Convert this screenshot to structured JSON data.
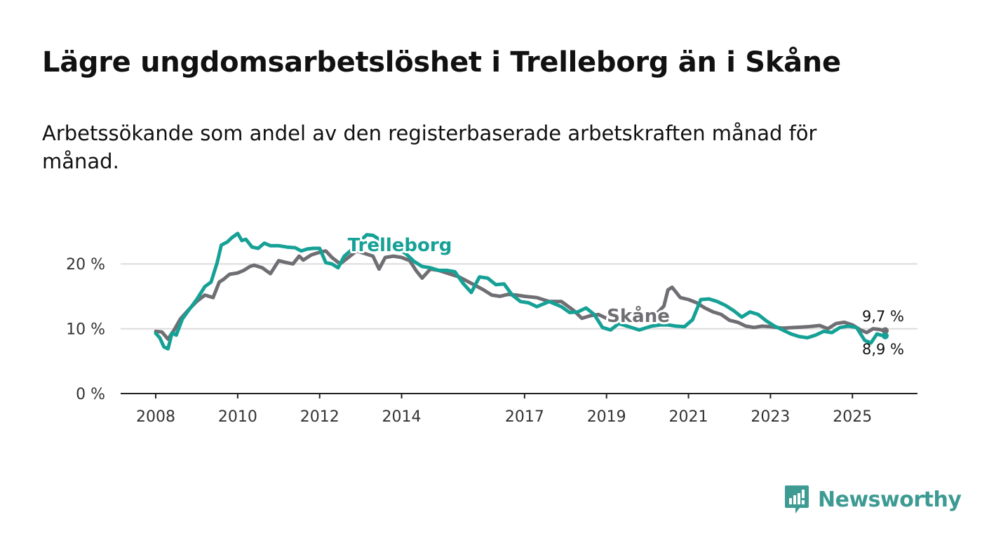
{
  "chart_data": {
    "type": "line",
    "title": "Lägre ungdomsarbetslöshet i Trelleborg än i Skåne",
    "subtitle": "Arbetssökande som andel av den registerbaserade arbetskraften månad för månad.",
    "xlabel": "",
    "ylabel": "",
    "ylim": [
      0,
      25
    ],
    "xlim": [
      2008,
      2025.8
    ],
    "y_ticks": [
      {
        "value": 0,
        "label": "0 %"
      },
      {
        "value": 10,
        "label": "10 %"
      },
      {
        "value": 20,
        "label": "20 %"
      }
    ],
    "x_ticks": [
      {
        "value": 2008,
        "label": "2008"
      },
      {
        "value": 2010,
        "label": "2010"
      },
      {
        "value": 2012,
        "label": "2012"
      },
      {
        "value": 2014,
        "label": "2014"
      },
      {
        "value": 2017,
        "label": "2017"
      },
      {
        "value": 2019,
        "label": "2019"
      },
      {
        "value": 2021,
        "label": "2021"
      },
      {
        "value": 2023,
        "label": "2023"
      },
      {
        "value": 2025,
        "label": "2025"
      }
    ],
    "gridlines": "horizontal",
    "series": [
      {
        "name": "Skåne",
        "label": "Skåne",
        "color": "#6e6e73",
        "end_label": "9,7 %",
        "x": [
          2008.0,
          2008.15,
          2008.3,
          2008.45,
          2008.6,
          2008.8,
          2009.0,
          2009.2,
          2009.4,
          2009.55,
          2009.65,
          2009.8,
          2010.0,
          2010.15,
          2010.3,
          2010.4,
          2010.6,
          2010.8,
          2011.0,
          2011.2,
          2011.35,
          2011.5,
          2011.6,
          2011.8,
          2012.0,
          2012.15,
          2012.3,
          2012.5,
          2012.7,
          2012.9,
          2013.1,
          2013.3,
          2013.45,
          2013.6,
          2013.8,
          2014.0,
          2014.2,
          2014.35,
          2014.5,
          2014.7,
          2014.9,
          2015.1,
          2015.4,
          2015.7,
          2016.0,
          2016.2,
          2016.4,
          2016.6,
          2016.8,
          2017.0,
          2017.3,
          2017.6,
          2017.9,
          2018.2,
          2018.4,
          2018.6,
          2018.8,
          2019.0,
          2019.3,
          2019.6,
          2019.9,
          2020.1,
          2020.25,
          2020.4,
          2020.5,
          2020.6,
          2020.8,
          2021.0,
          2021.2,
          2021.4,
          2021.6,
          2021.8,
          2022.0,
          2022.2,
          2022.4,
          2022.6,
          2022.8,
          2023.0,
          2023.3,
          2023.6,
          2023.9,
          2024.2,
          2024.4,
          2024.6,
          2024.8,
          2025.0,
          2025.2,
          2025.35,
          2025.5,
          2025.65,
          2025.8
        ],
        "values": [
          9.6,
          9.5,
          8.4,
          9.8,
          11.5,
          12.9,
          14.2,
          15.2,
          14.8,
          17.2,
          17.6,
          18.4,
          18.6,
          19.0,
          19.6,
          19.8,
          19.4,
          18.5,
          20.5,
          20.2,
          20.0,
          21.2,
          20.6,
          21.4,
          21.8,
          22.0,
          21.0,
          20.0,
          21.0,
          22.0,
          21.6,
          21.2,
          19.2,
          21.0,
          21.2,
          21.0,
          20.5,
          19.0,
          17.8,
          19.2,
          19.0,
          18.6,
          18.0,
          17.0,
          16.0,
          15.2,
          15.0,
          15.3,
          15.2,
          15.0,
          14.8,
          14.2,
          14.2,
          12.8,
          11.6,
          12.0,
          12.2,
          11.6,
          11.8,
          11.5,
          11.4,
          11.6,
          12.5,
          13.5,
          16.0,
          16.4,
          14.8,
          14.5,
          14.0,
          13.2,
          12.6,
          12.2,
          11.3,
          11.0,
          10.4,
          10.2,
          10.4,
          10.3,
          10.1,
          10.2,
          10.3,
          10.5,
          10.0,
          10.8,
          11.0,
          10.6,
          9.8,
          9.4,
          10.0,
          9.9,
          9.7
        ]
      },
      {
        "name": "Trelleborg",
        "label": "Trelleborg",
        "color": "#16a196",
        "end_label": "8,9 %",
        "x": [
          2008.0,
          2008.1,
          2008.2,
          2008.3,
          2008.4,
          2008.5,
          2008.65,
          2008.8,
          2009.0,
          2009.2,
          2009.35,
          2009.5,
          2009.6,
          2009.75,
          2009.85,
          2010.0,
          2010.1,
          2010.2,
          2010.35,
          2010.5,
          2010.65,
          2010.8,
          2011.0,
          2011.2,
          2011.4,
          2011.55,
          2011.7,
          2011.85,
          2012.0,
          2012.15,
          2012.3,
          2012.45,
          2012.6,
          2012.75,
          2012.9,
          2013.0,
          2013.15,
          2013.3,
          2013.5,
          2013.7,
          2013.9,
          2014.1,
          2014.3,
          2014.5,
          2014.7,
          2014.9,
          2015.1,
          2015.3,
          2015.5,
          2015.7,
          2015.9,
          2016.1,
          2016.3,
          2016.5,
          2016.7,
          2016.9,
          2017.1,
          2017.3,
          2017.6,
          2017.9,
          2018.1,
          2018.3,
          2018.5,
          2018.7,
          2018.9,
          2019.1,
          2019.3,
          2019.5,
          2019.8,
          2020.1,
          2020.3,
          2020.5,
          2020.7,
          2020.9,
          2021.1,
          2021.3,
          2021.5,
          2021.7,
          2021.9,
          2022.1,
          2022.3,
          2022.5,
          2022.7,
          2022.9,
          2023.1,
          2023.3,
          2023.5,
          2023.7,
          2023.9,
          2024.1,
          2024.3,
          2024.5,
          2024.7,
          2024.9,
          2025.1,
          2025.3,
          2025.45,
          2025.6,
          2025.7,
          2025.8
        ],
        "values": [
          9.3,
          8.6,
          7.2,
          6.9,
          9.4,
          9.0,
          11.5,
          12.8,
          14.5,
          16.5,
          17.2,
          20.2,
          22.9,
          23.4,
          24.0,
          24.7,
          23.6,
          23.8,
          22.6,
          22.4,
          23.2,
          22.8,
          22.8,
          22.6,
          22.5,
          22.0,
          22.3,
          22.4,
          22.4,
          20.2,
          20.0,
          19.4,
          21.2,
          22.0,
          22.8,
          23.6,
          24.5,
          24.4,
          23.6,
          22.5,
          22.4,
          21.6,
          20.4,
          19.6,
          19.4,
          19.0,
          19.0,
          18.8,
          17.0,
          15.6,
          18.0,
          17.8,
          16.8,
          16.9,
          15.2,
          14.2,
          14.0,
          13.4,
          14.2,
          13.4,
          12.5,
          12.6,
          13.2,
          12.2,
          10.2,
          9.8,
          10.8,
          10.4,
          9.8,
          10.4,
          10.6,
          10.6,
          10.4,
          10.3,
          11.4,
          14.5,
          14.6,
          14.2,
          13.6,
          12.8,
          11.8,
          12.6,
          12.2,
          11.2,
          10.4,
          9.8,
          9.2,
          8.8,
          8.6,
          9.0,
          9.6,
          9.4,
          10.2,
          10.4,
          10.2,
          8.2,
          7.8,
          9.2,
          9.0,
          8.9
        ]
      }
    ]
  },
  "branding": {
    "name": "Newsworthy",
    "color": "#3d9b93",
    "icon": "bar-chart-speech-icon"
  }
}
